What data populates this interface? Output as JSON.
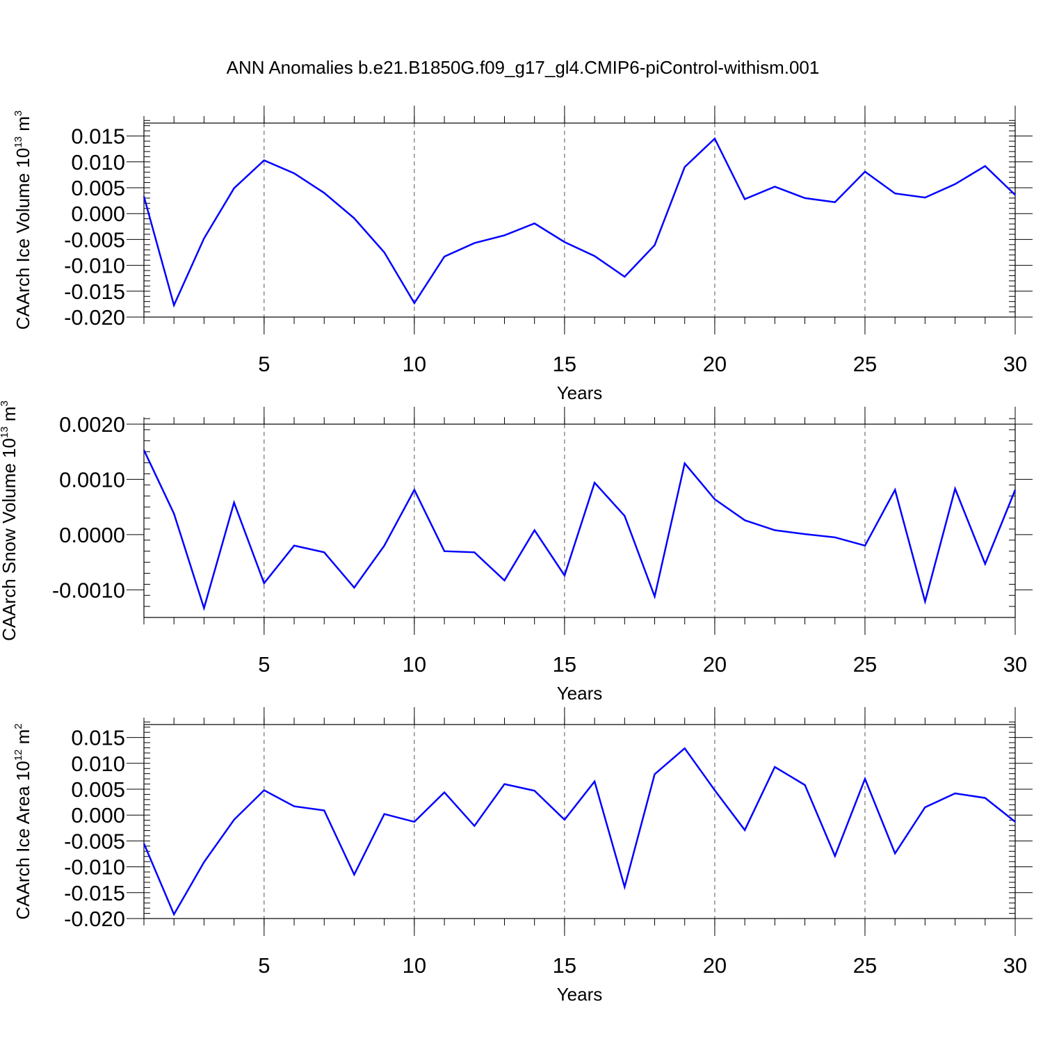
{
  "colors": {
    "series": "#0000ff",
    "axes": "#000000",
    "grid": "#555555"
  },
  "chart_data": [
    {
      "type": "line",
      "title": "ANN Anomalies b.e21.B1850G.f09_g17_gl4.CMIP6-piControl-withism.001",
      "xlabel": "Years",
      "ylabel_base": "CAArch Ice Volume 10",
      "ylabel_exp": "13",
      "ylabel_unit": " m",
      "ylabel_unit_exp": "3",
      "xlim": [
        1,
        30
      ],
      "ylim": [
        -0.02,
        0.0175
      ],
      "xticks": [
        5,
        10,
        15,
        20,
        25,
        30
      ],
      "yticks": [
        -0.02,
        -0.015,
        -0.01,
        -0.005,
        0.0,
        0.005,
        0.01,
        0.015
      ],
      "ytick_labels": [
        "-0.020",
        "-0.015",
        "-0.010",
        "-0.005",
        "0.000",
        "0.005",
        "0.010",
        "0.015"
      ],
      "yminor_step": 0.001,
      "grid": "dashed vertical lines at major x ticks",
      "x": [
        1,
        2,
        3,
        4,
        5,
        6,
        7,
        8,
        9,
        10,
        11,
        12,
        13,
        14,
        15,
        16,
        17,
        18,
        19,
        20,
        21,
        22,
        23,
        24,
        25,
        26,
        27,
        28,
        29,
        30
      ],
      "values": [
        0.0033,
        -0.0177,
        -0.0048,
        0.0049,
        0.0103,
        0.0078,
        0.004,
        -0.0009,
        -0.0075,
        -0.0173,
        -0.0083,
        -0.0057,
        -0.0042,
        -0.0019,
        -0.0055,
        -0.0082,
        -0.0122,
        -0.0061,
        0.009,
        0.0145,
        0.0028,
        0.0052,
        0.003,
        0.0022,
        0.0081,
        0.0039,
        0.0031,
        0.0057,
        0.0092,
        0.0036
      ]
    },
    {
      "type": "line",
      "xlabel": "Years",
      "ylabel_base": "CAArch Snow Volume 10",
      "ylabel_exp": "13",
      "ylabel_unit": " m",
      "ylabel_unit_exp": "3",
      "xlim": [
        1,
        30
      ],
      "ylim": [
        -0.0015,
        0.002
      ],
      "xticks": [
        5,
        10,
        15,
        20,
        25,
        30
      ],
      "yticks": [
        -0.001,
        0.0,
        0.001,
        0.002
      ],
      "ytick_labels": [
        "-0.0010",
        "0.0000",
        "0.0010",
        "0.0020"
      ],
      "yminor_step": 0.0002,
      "grid": "dashed vertical lines at major x ticks",
      "x": [
        1,
        2,
        3,
        4,
        5,
        6,
        7,
        8,
        9,
        10,
        11,
        12,
        13,
        14,
        15,
        16,
        17,
        18,
        19,
        20,
        21,
        22,
        23,
        24,
        25,
        26,
        27,
        28,
        29,
        30
      ],
      "values": [
        0.00153,
        0.00038,
        -0.00133,
        0.00058,
        -0.00088,
        -0.0002,
        -0.00032,
        -0.00096,
        -0.0002,
        0.00081,
        -0.0003,
        -0.00032,
        -0.00083,
        8e-05,
        -0.00074,
        0.00094,
        0.00034,
        -0.00112,
        0.00129,
        0.00064,
        0.00026,
        8e-05,
        1e-05,
        -5e-05,
        -0.0002,
        0.00081,
        -0.00121,
        0.00083,
        -0.00053,
        0.00081
      ]
    },
    {
      "type": "line",
      "xlabel": "Years",
      "ylabel_base": "CAArch Ice Area 10",
      "ylabel_exp": "12",
      "ylabel_unit": " m",
      "ylabel_unit_exp": "2",
      "xlim": [
        1,
        30
      ],
      "ylim": [
        -0.02,
        0.0175
      ],
      "xticks": [
        5,
        10,
        15,
        20,
        25,
        30
      ],
      "yticks": [
        -0.02,
        -0.015,
        -0.01,
        -0.005,
        0.0,
        0.005,
        0.01,
        0.015
      ],
      "ytick_labels": [
        "-0.020",
        "-0.015",
        "-0.010",
        "-0.005",
        "0.000",
        "0.005",
        "0.010",
        "0.015"
      ],
      "yminor_step": 0.001,
      "grid": "dashed vertical lines at major x ticks",
      "x": [
        1,
        2,
        3,
        4,
        5,
        6,
        7,
        8,
        9,
        10,
        11,
        12,
        13,
        14,
        15,
        16,
        17,
        18,
        19,
        20,
        21,
        22,
        23,
        24,
        25,
        26,
        27,
        28,
        29,
        30
      ],
      "values": [
        -0.0055,
        -0.0192,
        -0.0091,
        -0.0009,
        0.0048,
        0.0017,
        0.0009,
        -0.0115,
        0.0002,
        -0.0013,
        0.0044,
        -0.0021,
        0.006,
        0.0047,
        -0.0009,
        0.0065,
        -0.0139,
        0.0079,
        0.0129,
        0.0048,
        -0.0029,
        0.0093,
        0.0058,
        -0.0079,
        0.007,
        -0.0074,
        0.0015,
        0.0042,
        0.0033,
        -0.0013
      ]
    }
  ]
}
